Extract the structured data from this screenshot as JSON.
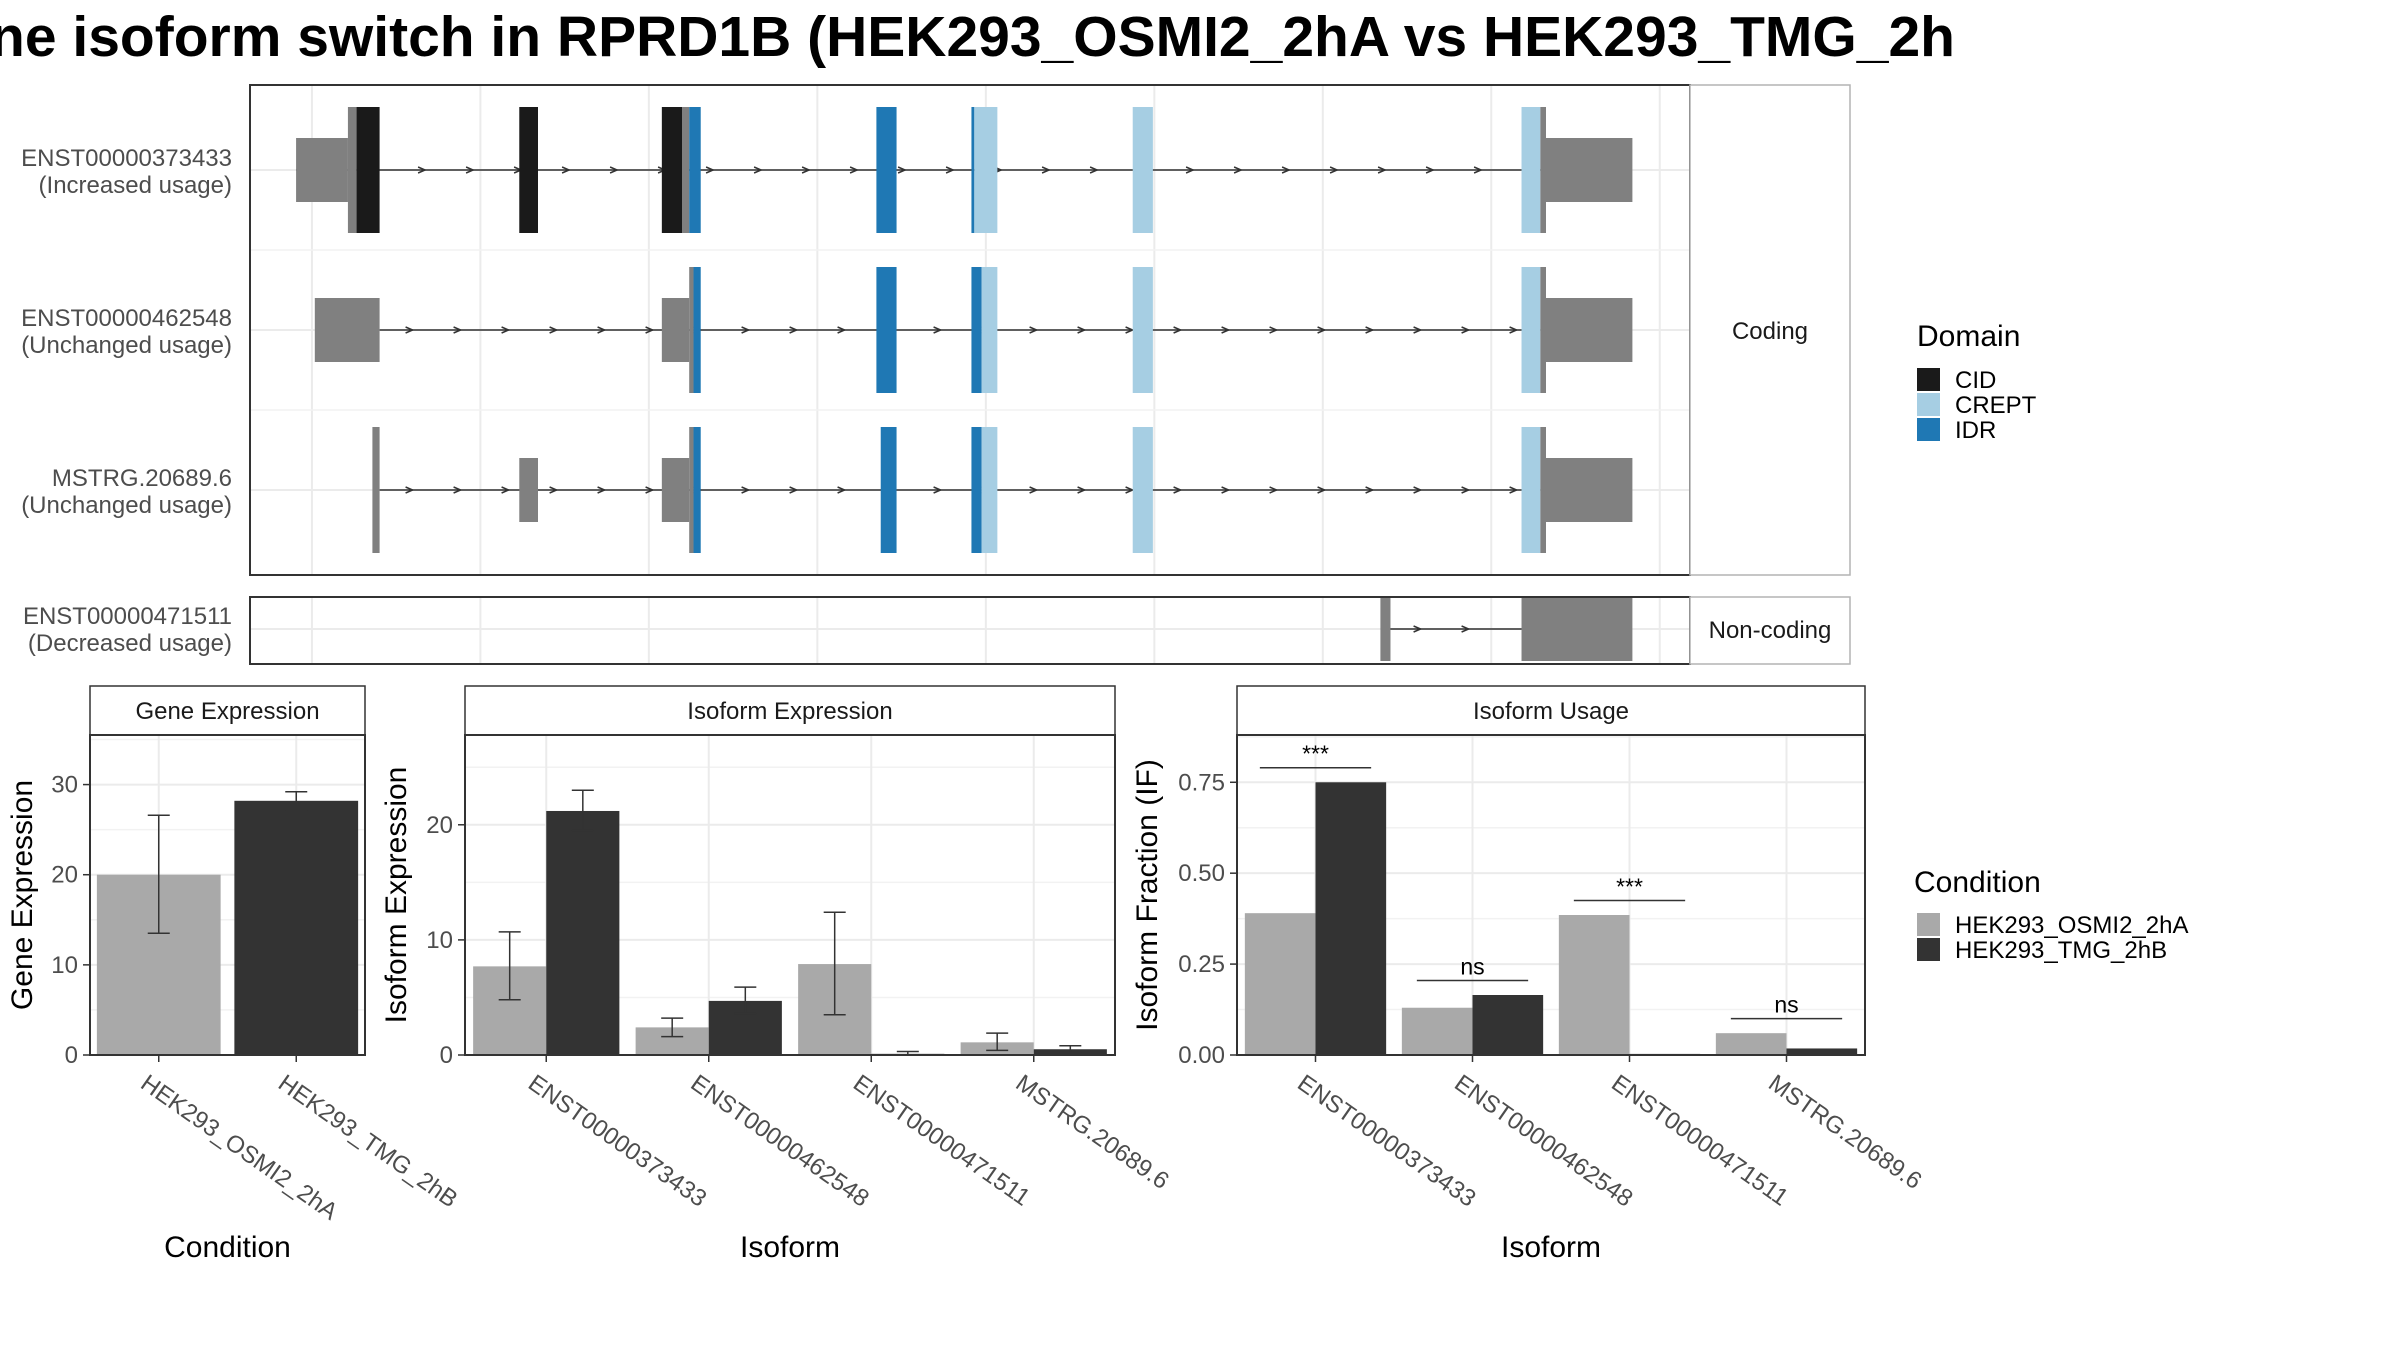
{
  "title": "ne isoform switch in RPRD1B (HEK293_OSMI2_2hA vs HEK293_TMG_2h",
  "colors": {
    "CID": "#1a1a1a",
    "CREPT": "#a6cee3",
    "IDR": "#1f78b4",
    "utr": "#808080",
    "HEK293_OSMI2_2hA": "#a9a9a9",
    "HEK293_TMG_2hB": "#333333"
  },
  "structure": {
    "facet_coding": "Coding",
    "facet_noncoding": "Non-coding",
    "coding_rows": [
      {
        "id": "ENST00000373433",
        "usage": "(Increased usage)",
        "span": [
          0.032,
          0.912
        ],
        "noncoding": [
          [
            0.032,
            0.068,
            "thin"
          ],
          [
            0.068,
            0.074,
            "thick"
          ],
          [
            0.3,
            0.305,
            "thick"
          ],
          [
            0.896,
            0.9,
            "thick"
          ],
          [
            0.9,
            0.96,
            "thin"
          ]
        ],
        "domains": [
          [
            0.074,
            0.09,
            "CID"
          ],
          [
            0.187,
            0.2,
            "CID"
          ],
          [
            0.286,
            0.3,
            "CID"
          ],
          [
            0.305,
            0.313,
            "IDR"
          ],
          [
            0.435,
            0.449,
            "IDR"
          ],
          [
            0.501,
            0.503,
            "IDR"
          ],
          [
            0.503,
            0.519,
            "CREPT"
          ],
          [
            0.613,
            0.627,
            "CREPT"
          ],
          [
            0.883,
            0.896,
            "CREPT"
          ]
        ]
      },
      {
        "id": "ENST00000462548",
        "usage": "(Unchanged usage)",
        "span": [
          0.09,
          0.896
        ],
        "noncoding": [
          [
            0.045,
            0.09,
            "thin"
          ],
          [
            0.286,
            0.305,
            "thin"
          ],
          [
            0.305,
            0.308,
            "thick"
          ],
          [
            0.896,
            0.9,
            "thick"
          ],
          [
            0.9,
            0.96,
            "thin"
          ]
        ],
        "domains": [
          [
            0.308,
            0.313,
            "IDR"
          ],
          [
            0.435,
            0.449,
            "IDR"
          ],
          [
            0.501,
            0.508,
            "IDR"
          ],
          [
            0.508,
            0.519,
            "CREPT"
          ],
          [
            0.613,
            0.627,
            "CREPT"
          ],
          [
            0.883,
            0.896,
            "CREPT"
          ]
        ]
      },
      {
        "id": "MSTRG.20689.6",
        "usage": "(Unchanged usage)",
        "span": [
          0.09,
          0.896
        ],
        "noncoding": [
          [
            0.085,
            0.09,
            "thick"
          ],
          [
            0.187,
            0.2,
            "thin"
          ],
          [
            0.286,
            0.305,
            "thin"
          ],
          [
            0.305,
            0.308,
            "thick"
          ],
          [
            0.896,
            0.9,
            "thick"
          ],
          [
            0.9,
            0.96,
            "thin"
          ]
        ],
        "domains": [
          [
            0.308,
            0.313,
            "IDR"
          ],
          [
            0.438,
            0.449,
            "IDR"
          ],
          [
            0.501,
            0.508,
            "IDR"
          ],
          [
            0.508,
            0.519,
            "CREPT"
          ],
          [
            0.613,
            0.627,
            "CREPT"
          ],
          [
            0.883,
            0.896,
            "CREPT"
          ]
        ]
      }
    ],
    "noncoding_rows": [
      {
        "id": "ENST00000471511",
        "usage": "(Decreased usage)",
        "span": [
          0.79,
          0.883
        ],
        "blocks": [
          [
            0.785,
            0.792
          ],
          [
            0.883,
            0.96
          ]
        ]
      }
    ]
  },
  "legends": {
    "domain_title": "Domain",
    "domain_items": [
      "CID",
      "CREPT",
      "IDR"
    ],
    "condition_title": "Condition",
    "condition_items": [
      "HEK293_OSMI2_2hA",
      "HEK293_TMG_2hB"
    ]
  },
  "chart_data": [
    {
      "type": "bar",
      "title": "Gene Expression",
      "xlabel": "Condition",
      "ylabel": "Gene Expression",
      "ylim": [
        0,
        35.5
      ],
      "yticks": [
        0,
        10,
        20,
        30
      ],
      "categories": [
        "HEK293_OSMI2_2hA",
        "HEK293_TMG_2hB"
      ],
      "values": [
        20.0,
        28.2
      ],
      "errors": [
        [
          13.5,
          26.6
        ],
        [
          27.1,
          29.2
        ]
      ]
    },
    {
      "type": "bar",
      "title": "Isoform Expression",
      "xlabel": "Isoform",
      "ylabel": "Isoform Expression",
      "ylim": [
        0,
        27.8
      ],
      "yticks": [
        0,
        10,
        20
      ],
      "categories": [
        "ENST00000373433",
        "ENST00000462548",
        "ENST00000471511",
        "MSTRG.20689.6"
      ],
      "series": [
        {
          "name": "HEK293_OSMI2_2hA",
          "values": [
            7.7,
            2.4,
            7.9,
            1.1
          ],
          "errors": [
            [
              4.8,
              10.7
            ],
            [
              1.6,
              3.2
            ],
            [
              3.5,
              12.4
            ],
            [
              0.4,
              1.9
            ]
          ]
        },
        {
          "name": "HEK293_TMG_2hB",
          "values": [
            21.2,
            4.7,
            0.1,
            0.5
          ],
          "errors": [
            [
              19.5,
              23.0
            ],
            [
              3.6,
              5.9
            ],
            [
              0.0,
              0.3
            ],
            [
              0.2,
              0.8
            ]
          ]
        }
      ]
    },
    {
      "type": "bar",
      "title": "Isoform Usage",
      "xlabel": "Isoform",
      "ylabel": "Isoform Fraction (IF)",
      "ylim": [
        0,
        0.88
      ],
      "yticks": [
        "0.00",
        "0.25",
        "0.50",
        "0.75"
      ],
      "categories": [
        "ENST00000373433",
        "ENST00000462548",
        "ENST00000471511",
        "MSTRG.20689.6"
      ],
      "series": [
        {
          "name": "HEK293_OSMI2_2hA",
          "values": [
            0.39,
            0.13,
            0.385,
            0.06
          ]
        },
        {
          "name": "HEK293_TMG_2hB",
          "values": [
            0.75,
            0.165,
            0.003,
            0.018
          ]
        }
      ],
      "significance": [
        "***",
        "ns",
        "***",
        "ns"
      ],
      "significance_level": [
        0.79,
        0.205,
        0.425,
        0.1
      ]
    }
  ]
}
